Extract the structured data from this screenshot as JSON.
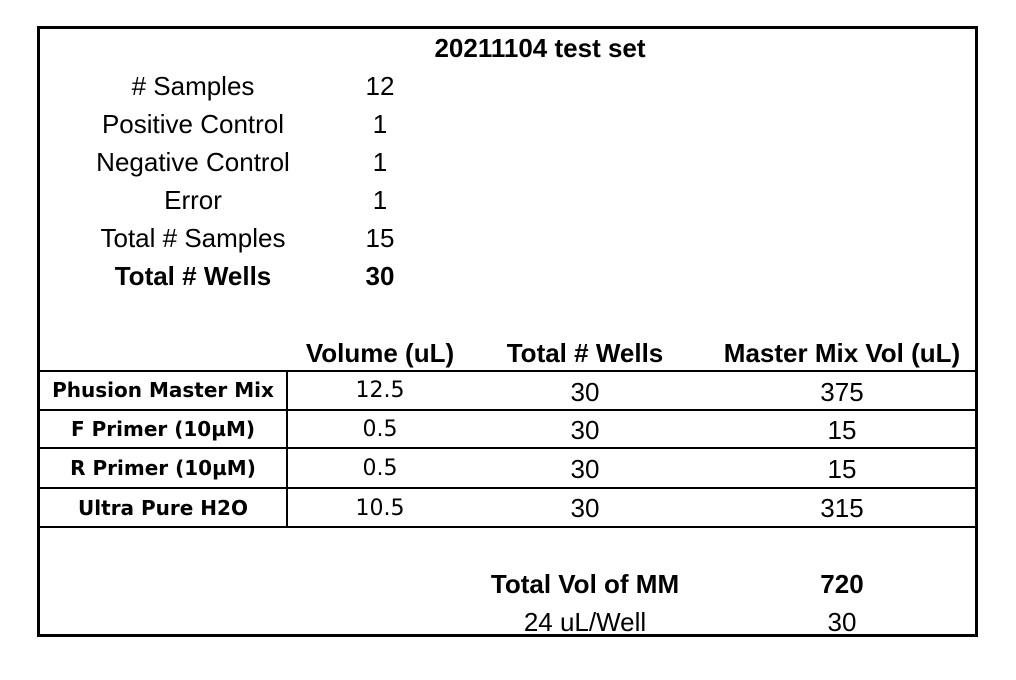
{
  "title": "20211104 test set",
  "summary": [
    {
      "label": "# Samples",
      "value": "12"
    },
    {
      "label": "Positive Control",
      "value": "1"
    },
    {
      "label": "Negative Control",
      "value": "1"
    },
    {
      "label": "Error",
      "value": "1"
    },
    {
      "label": "Total # Samples",
      "value": "15"
    },
    {
      "label": "Total # Wells",
      "value": "30"
    }
  ],
  "mix_table": {
    "headers": [
      "Volume (uL)",
      "Total # Wells",
      "Master Mix Vol (uL)"
    ],
    "rows": [
      {
        "reagent": "Phusion Master Mix",
        "volume": "12.5",
        "wells": "30",
        "mm_vol": "375"
      },
      {
        "reagent": "F Primer (10µM)",
        "volume": "0.5",
        "wells": "30",
        "mm_vol": "15"
      },
      {
        "reagent": "R Primer (10µM)",
        "volume": "0.5",
        "wells": "30",
        "mm_vol": "15"
      },
      {
        "reagent": "Ultra Pure H2O",
        "volume": "10.5",
        "wells": "30",
        "mm_vol": "315"
      }
    ]
  },
  "totals": {
    "total_label": "Total Vol of MM",
    "total_value": "720",
    "per_well_label": "24 uL/Well",
    "per_well_value": "30"
  }
}
